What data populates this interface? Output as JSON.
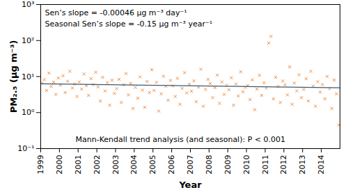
{
  "chart_data": {
    "type": "scatter",
    "x_label": "Year",
    "y_label": "PM₂.₅ (μg m⁻³)",
    "annotations": [
      "Sen’s slope = -0.00046 μg m⁻³ day⁻¹",
      "Seasonal Sen’s slope = -0.15 μg m⁻³ year⁻¹",
      "Mann-Kendall trend analysis (and seasonal): P < 0.001"
    ],
    "log": "y",
    "grid": false,
    "marker": "x",
    "color": "#f08a3c",
    "xlim": [
      1999,
      2015
    ],
    "xticks": [
      1999,
      2000,
      2001,
      2002,
      2003,
      2004,
      2005,
      2006,
      2007,
      2008,
      2009,
      2010,
      2011,
      2012,
      2013,
      2014
    ],
    "ylim": [
      0.1,
      1000
    ],
    "yticks": [
      {
        "value": 0.1,
        "label": "10⁻¹"
      },
      {
        "value": 1,
        "label": "10⁰"
      },
      {
        "value": 10,
        "label": "10¹"
      },
      {
        "value": 100,
        "label": "10²"
      },
      {
        "value": 1000,
        "label": "10³"
      }
    ],
    "x": [
      1999.06,
      1999.19,
      1999.31,
      1999.44,
      1999.56,
      1999.69,
      1999.81,
      1999.94,
      2000.06,
      2000.19,
      2000.31,
      2000.44,
      2000.56,
      2000.69,
      2000.81,
      2000.94,
      2001.06,
      2001.19,
      2001.31,
      2001.44,
      2001.56,
      2001.69,
      2001.81,
      2001.94,
      2002.06,
      2002.19,
      2002.31,
      2002.44,
      2002.56,
      2002.69,
      2002.81,
      2002.94,
      2003.06,
      2003.19,
      2003.31,
      2003.44,
      2003.56,
      2003.69,
      2003.81,
      2003.94,
      2004.06,
      2004.19,
      2004.31,
      2004.44,
      2004.56,
      2004.69,
      2004.81,
      2004.94,
      2005.06,
      2005.19,
      2005.31,
      2005.44,
      2005.56,
      2005.69,
      2005.81,
      2005.94,
      2006.06,
      2006.19,
      2006.31,
      2006.44,
      2006.56,
      2006.69,
      2006.81,
      2006.94,
      2007.06,
      2007.19,
      2007.31,
      2007.44,
      2007.56,
      2007.69,
      2007.81,
      2007.94,
      2008.06,
      2008.19,
      2008.31,
      2008.44,
      2008.56,
      2008.69,
      2008.81,
      2008.94,
      2009.06,
      2009.19,
      2009.31,
      2009.44,
      2009.56,
      2009.69,
      2009.81,
      2009.94,
      2010.06,
      2010.19,
      2010.31,
      2010.44,
      2010.56,
      2010.69,
      2010.81,
      2010.94,
      2011.06,
      2011.19,
      2011.31,
      2011.44,
      2011.56,
      2011.69,
      2011.81,
      2011.94,
      2012.06,
      2012.19,
      2012.31,
      2012.44,
      2012.56,
      2012.69,
      2012.81,
      2012.94,
      2013.06,
      2013.19,
      2013.31,
      2013.44,
      2013.56,
      2013.69,
      2013.81,
      2013.94,
      2014.06,
      2014.19,
      2014.31,
      2014.44,
      2014.56,
      2014.69,
      2014.81,
      2014.94
    ],
    "values": [
      6.5,
      8.2,
      4.1,
      12.5,
      5.3,
      7.0,
      3.2,
      9.1,
      5.8,
      10.5,
      3.6,
      7.4,
      14.0,
      4.8,
      6.2,
      2.8,
      7.1,
      4.5,
      11.8,
      5.6,
      3.0,
      8.8,
      6.0,
      13.2,
      5.2,
      2.1,
      9.5,
      4.0,
      6.8,
      1.6,
      7.9,
      3.4,
      4.6,
      8.4,
      1.9,
      5.9,
      12.1,
      3.1,
      6.5,
      1.3,
      5.0,
      2.5,
      9.8,
      4.2,
      1.4,
      7.3,
      3.6,
      15.5,
      4.1,
      6.9,
      1.1,
      3.3,
      10.2,
      5.4,
      2.2,
      7.8,
      5.5,
      2.8,
      8.9,
      1.7,
      4.7,
      12.8,
      3.5,
      6.1,
      3.9,
      7.6,
      2.0,
      5.1,
      16.0,
      1.5,
      4.4,
      8.3,
      6.4,
      2.6,
      4.9,
      11.0,
      1.8,
      7.1,
      3.2,
      5.7,
      4.3,
      9.2,
      1.6,
      6.2,
      2.9,
      13.5,
      3.8,
      5.0,
      5.6,
      2.3,
      8.1,
      1.2,
      4.5,
      10.8,
      3.0,
      6.7,
      4.8,
      85.0,
      130.0,
      2.4,
      9.6,
      5.3,
      1.9,
      7.5,
      5.9,
      3.1,
      18.5,
      1.7,
      6.6,
      4.0,
      11.2,
      2.6,
      4.4,
      8.7,
      2.1,
      14.0,
      5.5,
      1.5,
      7.2,
      3.7,
      6.0,
      2.4,
      10.1,
      4.6,
      1.3,
      8.0,
      3.3,
      0.45
    ],
    "trend_line": {
      "x": [
        1999,
        2015
      ],
      "values": [
        6.3,
        4.9
      ],
      "color": "#3b5a75",
      "line_style": "solid"
    }
  }
}
